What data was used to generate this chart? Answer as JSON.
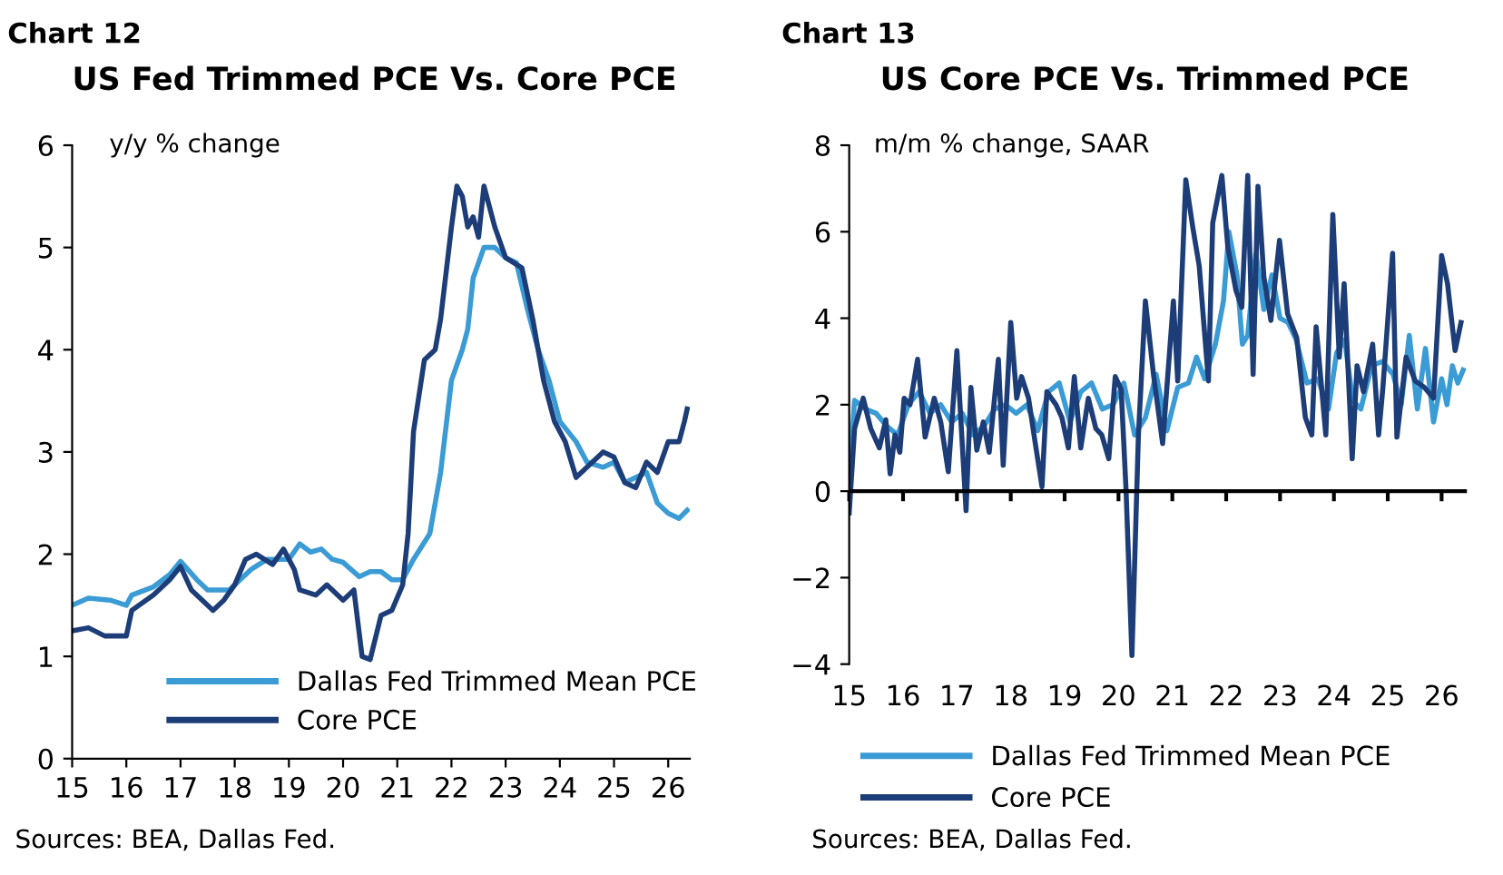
{
  "chart_data": [
    {
      "type": "line",
      "title": "US Fed Trimmed PCE Vs. Core PCE",
      "subtitle": "y/y % change",
      "annotations": [
        "Chart 12",
        "Sources: BEA, Dallas Fed."
      ],
      "xlim": [
        15,
        26.4
      ],
      "xticks": [
        15,
        16,
        17,
        18,
        19,
        20,
        21,
        22,
        23,
        24,
        25,
        26
      ],
      "ylim": [
        0,
        6
      ],
      "yticks": [
        0,
        1,
        2,
        3,
        4,
        5,
        6
      ],
      "grid": false,
      "legend": "bottom right",
      "marker": "none",
      "line_style": "solid",
      "series": [
        {
          "name": "Dallas Fed Trimmed Mean PCE",
          "color": "#3a9bd5",
          "x": [
            15,
            15.3,
            15.7,
            16,
            16.1,
            16.5,
            16.8,
            17,
            17.3,
            17.5,
            17.9,
            18.1,
            18.3,
            18.6,
            19,
            19.2,
            19.4,
            19.6,
            19.8,
            20,
            20.3,
            20.5,
            20.7,
            20.9,
            21.1,
            21.3,
            21.6,
            21.8,
            22,
            22.2,
            22.3,
            22.4,
            22.6,
            22.8,
            23,
            23.2,
            23.4,
            23.6,
            23.8,
            24,
            24.3,
            24.5,
            24.8,
            25,
            25.2,
            25.4,
            25.6,
            25.8,
            26,
            26.2,
            26.35
          ],
          "values": [
            1.5,
            1.57,
            1.55,
            1.5,
            1.6,
            1.68,
            1.8,
            1.93,
            1.75,
            1.65,
            1.65,
            1.75,
            1.85,
            1.95,
            1.95,
            2.1,
            2.02,
            2.05,
            1.95,
            1.92,
            1.78,
            1.83,
            1.83,
            1.75,
            1.75,
            1.95,
            2.2,
            2.8,
            3.7,
            4.0,
            4.2,
            4.7,
            5.0,
            5.0,
            4.9,
            4.85,
            4.4,
            4.0,
            3.7,
            3.3,
            3.1,
            2.9,
            2.85,
            2.9,
            2.7,
            2.75,
            2.8,
            2.5,
            2.4,
            2.35,
            2.43
          ]
        },
        {
          "name": "Core PCE",
          "color": "#1d3d78",
          "x": [
            15,
            15.3,
            15.6,
            16,
            16.1,
            16.5,
            16.8,
            17,
            17.2,
            17.4,
            17.6,
            17.8,
            18,
            18.2,
            18.4,
            18.7,
            18.9,
            19.1,
            19.2,
            19.5,
            19.7,
            20,
            20.2,
            20.35,
            20.5,
            20.7,
            20.9,
            21.1,
            21.2,
            21.3,
            21.5,
            21.7,
            21.8,
            22,
            22.1,
            22.2,
            22.3,
            22.4,
            22.5,
            22.6,
            22.8,
            23,
            23.3,
            23.5,
            23.7,
            23.9,
            24.1,
            24.3,
            24.5,
            24.8,
            25,
            25.2,
            25.4,
            25.6,
            25.8,
            26,
            26.2,
            26.3,
            26.35
          ],
          "values": [
            1.25,
            1.28,
            1.2,
            1.2,
            1.45,
            1.6,
            1.75,
            1.88,
            1.65,
            1.55,
            1.45,
            1.55,
            1.7,
            1.95,
            2.0,
            1.9,
            2.05,
            1.85,
            1.65,
            1.6,
            1.7,
            1.55,
            1.65,
            1.0,
            0.97,
            1.4,
            1.45,
            1.7,
            2.2,
            3.2,
            3.9,
            4.0,
            4.3,
            5.2,
            5.6,
            5.5,
            5.2,
            5.3,
            5.1,
            5.6,
            5.2,
            4.9,
            4.8,
            4.3,
            3.7,
            3.3,
            3.1,
            2.75,
            2.85,
            3.0,
            2.95,
            2.7,
            2.65,
            2.9,
            2.8,
            3.1,
            3.1,
            3.3,
            3.42
          ]
        }
      ]
    },
    {
      "type": "line",
      "title": "US Core PCE Vs. Trimmed PCE",
      "subtitle": "m/m % change, SAAR",
      "annotations": [
        "Chart 13",
        "Sources: BEA, Dallas Fed."
      ],
      "xlim": [
        15,
        26.47
      ],
      "xticks": [
        15,
        16,
        17,
        18,
        19,
        20,
        21,
        22,
        23,
        24,
        25,
        26
      ],
      "ref_lines": [
        {
          "axis": "y",
          "value": 0,
          "color": "#000000"
        }
      ],
      "ylim": [
        -4,
        8
      ],
      "yticks": [
        -4,
        -2,
        0,
        2,
        4,
        6,
        8
      ],
      "grid": false,
      "legend": "bottom",
      "marker": "none",
      "line_style": "solid",
      "series": [
        {
          "name": "Dallas Fed Trimmed Mean PCE",
          "color": "#3a9bd5",
          "x": [
            15,
            15.1,
            15.3,
            15.5,
            15.7,
            15.9,
            16.1,
            16.3,
            16.5,
            16.7,
            16.9,
            17.1,
            17.3,
            17.5,
            17.7,
            17.9,
            18.1,
            18.3,
            18.5,
            18.7,
            18.9,
            19.1,
            19.3,
            19.5,
            19.7,
            19.9,
            20.1,
            20.3,
            20.5,
            20.7,
            20.9,
            21.1,
            21.3,
            21.45,
            21.6,
            21.8,
            21.95,
            22.05,
            22.2,
            22.3,
            22.4,
            22.55,
            22.7,
            22.85,
            23.0,
            23.15,
            23.3,
            23.5,
            23.7,
            23.9,
            24.05,
            24.2,
            24.35,
            24.5,
            24.7,
            24.9,
            25.1,
            25.25,
            25.4,
            25.55,
            25.7,
            25.85,
            26.0,
            26.1,
            26.2,
            26.3,
            26.4
          ],
          "values": [
            0.3,
            2.1,
            1.9,
            1.8,
            1.5,
            1.3,
            2.0,
            2.3,
            1.8,
            2.0,
            1.6,
            1.8,
            1.3,
            1.5,
            1.9,
            2.0,
            1.8,
            2.0,
            1.4,
            2.3,
            2.5,
            1.6,
            2.3,
            2.5,
            1.9,
            2.0,
            2.5,
            1.3,
            1.7,
            2.7,
            1.4,
            2.4,
            2.5,
            3.1,
            2.6,
            3.4,
            4.4,
            6.0,
            5.0,
            3.4,
            3.6,
            5.5,
            4.2,
            5.0,
            4.0,
            3.9,
            3.5,
            2.5,
            2.6,
            1.9,
            3.2,
            3.5,
            2.1,
            1.9,
            2.9,
            3.0,
            2.7,
            2.0,
            3.6,
            1.9,
            3.3,
            1.6,
            2.6,
            2.0,
            2.9,
            2.5,
            2.8
          ]
        },
        {
          "name": "Core PCE",
          "color": "#1d3d78",
          "x": [
            15,
            15.1,
            15.26,
            15.4,
            15.56,
            15.68,
            15.76,
            15.85,
            15.94,
            16.02,
            16.13,
            16.27,
            16.41,
            16.58,
            16.7,
            16.84,
            17.0,
            17.17,
            17.26,
            17.37,
            17.49,
            17.6,
            17.77,
            17.86,
            18.0,
            18.11,
            18.2,
            18.33,
            18.45,
            18.58,
            18.67,
            18.84,
            18.95,
            19.07,
            19.18,
            19.3,
            19.44,
            19.58,
            19.69,
            19.82,
            19.94,
            20.05,
            20.14,
            20.25,
            20.37,
            20.5,
            20.65,
            20.82,
            21.02,
            21.1,
            21.25,
            21.38,
            21.5,
            21.67,
            21.75,
            21.92,
            22.03,
            22.18,
            22.29,
            22.4,
            22.5,
            22.59,
            22.7,
            22.83,
            22.99,
            23.14,
            23.31,
            23.47,
            23.59,
            23.67,
            23.85,
            23.98,
            24.1,
            24.19,
            24.34,
            24.43,
            24.55,
            24.72,
            24.83,
            24.91,
            25.09,
            25.17,
            25.34,
            25.51,
            25.68,
            25.85,
            26.0,
            26.11,
            26.25,
            26.36
          ],
          "values": [
            -0.5,
            1.45,
            2.15,
            1.45,
            1.0,
            1.65,
            0.4,
            1.3,
            0.9,
            2.15,
            2.0,
            3.05,
            1.25,
            2.15,
            1.6,
            0.45,
            3.25,
            -0.45,
            2.4,
            0.95,
            1.6,
            0.9,
            3.05,
            0.6,
            3.9,
            2.15,
            2.65,
            2.15,
            1.15,
            0.1,
            2.3,
            2.0,
            1.7,
            1.0,
            2.65,
            1.0,
            2.15,
            1.45,
            1.3,
            0.75,
            2.65,
            2.35,
            0.05,
            -3.8,
            1.3,
            4.4,
            2.7,
            1.1,
            4.4,
            2.55,
            7.2,
            6.1,
            5.2,
            2.55,
            6.2,
            7.3,
            5.65,
            4.65,
            4.25,
            7.3,
            2.7,
            7.05,
            4.95,
            3.95,
            5.8,
            4.1,
            3.55,
            1.7,
            1.3,
            3.8,
            1.3,
            6.4,
            3.1,
            4.8,
            0.75,
            2.9,
            2.3,
            3.4,
            1.3,
            2.4,
            5.5,
            1.25,
            3.1,
            2.55,
            2.4,
            2.15,
            5.45,
            4.8,
            3.25,
            3.9
          ]
        }
      ]
    }
  ]
}
